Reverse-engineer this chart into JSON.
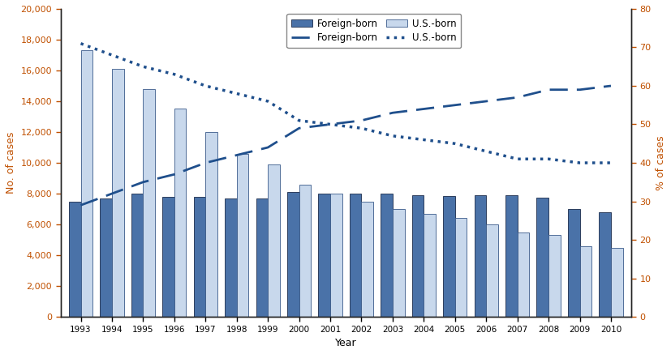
{
  "years": [
    1993,
    1994,
    1995,
    1996,
    1997,
    1998,
    1999,
    2000,
    2001,
    2002,
    2003,
    2004,
    2005,
    2006,
    2007,
    2008,
    2009,
    2010
  ],
  "foreign_born_cases": [
    7500,
    7700,
    8000,
    7800,
    7800,
    7700,
    7700,
    8100,
    8000,
    8000,
    8000,
    7900,
    7850,
    7900,
    7900,
    7750,
    7000,
    6800
  ],
  "us_born_cases": [
    17300,
    16100,
    14800,
    13500,
    12000,
    10600,
    9900,
    8600,
    8000,
    7500,
    7000,
    6700,
    6400,
    6000,
    5500,
    5300,
    4600,
    4500
  ],
  "foreign_born_pct": [
    29,
    32,
    35,
    37,
    40,
    42,
    44,
    49,
    50,
    51,
    53,
    54,
    55,
    56,
    57,
    59,
    59,
    60
  ],
  "us_born_pct": [
    71,
    68,
    65,
    63,
    60,
    58,
    56,
    51,
    50,
    49,
    47,
    46,
    45,
    43,
    41,
    41,
    40,
    40
  ],
  "foreign_bar_color": "#4a72a8",
  "us_bar_color": "#c8d8ec",
  "line_color": "#1f4f8c",
  "xlabel": "Year",
  "ylabel_left": "No. of cases",
  "ylabel_right": "% of cases",
  "ylim_left": [
    0,
    20000
  ],
  "ylim_right": [
    0,
    80
  ],
  "yticks_left": [
    0,
    2000,
    4000,
    6000,
    8000,
    10000,
    12000,
    14000,
    16000,
    18000,
    20000
  ],
  "yticks_right": [
    0,
    10,
    20,
    30,
    40,
    50,
    60,
    70,
    80
  ],
  "bar_width": 0.38,
  "figsize": [
    8.28,
    4.37
  ],
  "dpi": 100,
  "tick_color": "#c05000",
  "label_color": "#c05000",
  "spine_color": "#222222"
}
